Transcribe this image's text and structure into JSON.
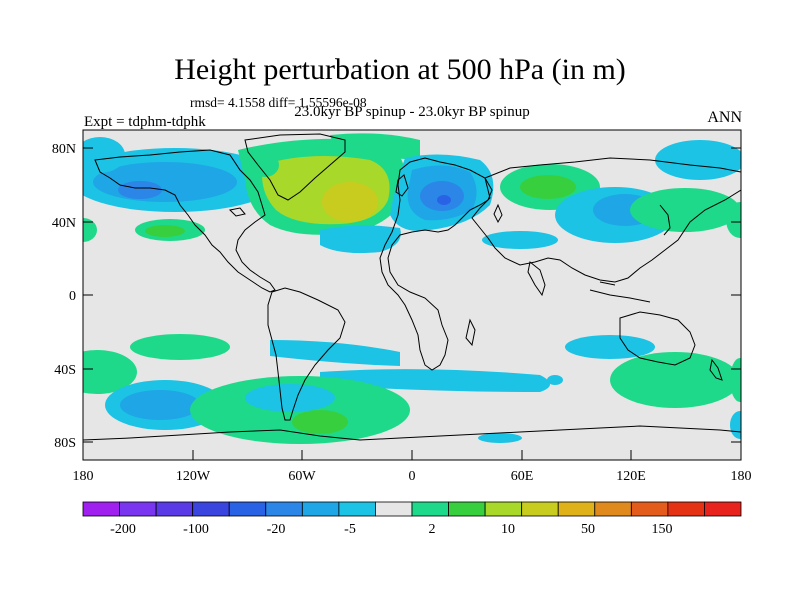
{
  "title": "Height perturbation at 500 hPa (in m)",
  "stats_line": "rmsd= 4.1558 diff= 1.55596e-08",
  "experiment": "Expt = tdphm-tdphk",
  "comparison": "23.0kyr BP spinup - 23.0kyr BP spinup",
  "season": "ANN",
  "lat_ticks": [
    "80N",
    "40N",
    "0",
    "40S",
    "80S"
  ],
  "lon_ticks": [
    "180",
    "120W",
    "60W",
    "0",
    "60E",
    "120E",
    "180"
  ],
  "colorbar": {
    "colors": [
      "#a020f0",
      "#7a35f0",
      "#5a3ae6",
      "#3a45df",
      "#2a62e6",
      "#2b86e8",
      "#1ea6e6",
      "#1cc3e4",
      "#e6e6e6",
      "#1fd98a",
      "#38cf3f",
      "#a8d82a",
      "#c8cc1f",
      "#e0b21a",
      "#e08a1e",
      "#e35c1c",
      "#e63214",
      "#e8221c"
    ],
    "labels": [
      "-200",
      "-100",
      "-20",
      "-5",
      "2",
      "10",
      "50",
      "150"
    ]
  }
}
